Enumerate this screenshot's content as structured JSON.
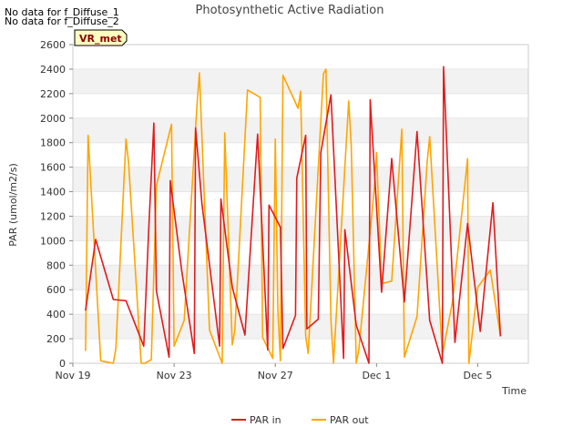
{
  "notes": [
    "No data for f_Diffuse_1",
    "No data for f_Diffuse_2"
  ],
  "badge": "VR_met",
  "chart_data": {
    "type": "line",
    "title": "Photosynthetic Active Radiation",
    "xlabel": "Time",
    "ylabel": "PAR (umol/m2/s)",
    "ylim": [
      0,
      2600
    ],
    "yticks": [
      0,
      200,
      400,
      600,
      800,
      1000,
      1200,
      1400,
      1600,
      1800,
      2000,
      2200,
      2400,
      2600
    ],
    "xlim": [
      19,
      37
    ],
    "xticks": [
      {
        "value": 19,
        "label": "Nov 19"
      },
      {
        "value": 23,
        "label": "Nov 23"
      },
      {
        "value": 27,
        "label": "Nov 27"
      },
      {
        "value": 31,
        "label": "Dec 1"
      },
      {
        "value": 35,
        "label": "Dec 5"
      }
    ],
    "grid": "horizontal bands",
    "legend_position": "bottom",
    "series": [
      {
        "name": "PAR in",
        "color": "#e31a1c",
        "x": [
          19.5,
          19.9,
          20.6,
          21.1,
          21.8,
          22.0,
          22.2,
          22.3,
          22.8,
          22.85,
          23.3,
          23.8,
          23.85,
          24.1,
          24.8,
          24.85,
          25.3,
          25.8,
          26.3,
          26.7,
          26.75,
          27.2,
          27.3,
          27.8,
          27.85,
          28.2,
          28.25,
          28.7,
          28.8,
          29.2,
          29.7,
          29.75,
          30.2,
          30.7,
          30.75,
          31.2,
          31.6,
          32.1,
          32.6,
          33.1,
          33.6,
          33.65,
          34.1,
          34.6,
          35.1,
          35.6,
          35.9
        ],
        "y": [
          430,
          1010,
          520,
          510,
          140,
          1100,
          1960,
          590,
          50,
          1490,
          760,
          80,
          1920,
          1300,
          140,
          1340,
          620,
          230,
          1870,
          110,
          1290,
          1110,
          120,
          390,
          1510,
          1860,
          280,
          360,
          1720,
          2190,
          40,
          1090,
          310,
          0,
          2150,
          580,
          1670,
          500,
          1890,
          350,
          0,
          2420,
          170,
          1140,
          260,
          1310,
          220
        ]
      },
      {
        "name": "PAR out",
        "color": "#ffa500",
        "x": [
          19.5,
          19.6,
          20.1,
          20.6,
          20.7,
          21.1,
          21.2,
          21.7,
          21.85,
          22.1,
          22.3,
          22.9,
          23.0,
          23.4,
          23.9,
          24.0,
          24.4,
          24.9,
          25.0,
          25.3,
          25.4,
          25.9,
          26.4,
          26.5,
          26.9,
          27.0,
          27.1,
          27.2,
          27.3,
          27.9,
          28.0,
          28.2,
          28.3,
          28.9,
          29.0,
          29.2,
          29.3,
          29.9,
          30.0,
          30.2,
          30.3,
          30.9,
          31.0,
          31.2,
          31.6,
          32.0,
          32.1,
          32.6,
          33.0,
          33.1,
          33.6,
          34.0,
          34.6,
          34.65,
          35.0,
          35.5,
          35.9
        ],
        "y": [
          100,
          1860,
          20,
          0,
          120,
          1830,
          1640,
          0,
          0,
          30,
          1450,
          1950,
          140,
          350,
          2090,
          2370,
          270,
          0,
          1880,
          150,
          270,
          2230,
          2170,
          210,
          40,
          1830,
          440,
          20,
          2350,
          2080,
          2220,
          220,
          80,
          2360,
          2400,
          350,
          0,
          2140,
          1770,
          0,
          110,
          1400,
          1720,
          650,
          670,
          1910,
          50,
          380,
          1640,
          1850,
          70,
          500,
          1670,
          0,
          620,
          760,
          220
        ]
      }
    ]
  }
}
